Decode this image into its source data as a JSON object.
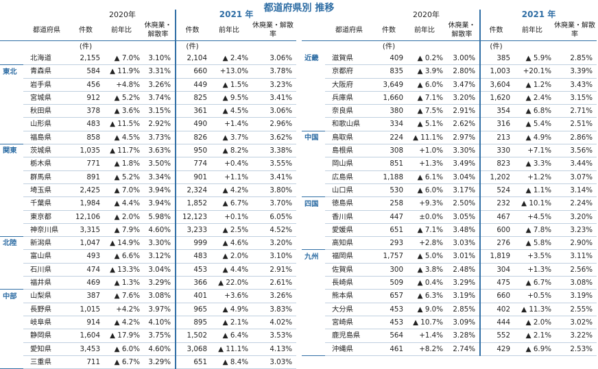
{
  "title": "都道府県別 推移",
  "year_2020": "2020年",
  "year_2021": "2021 年",
  "col_pref": "都道府県",
  "col_count": "件数",
  "col_yoy": "前年比",
  "col_rate": "休廃業・解散率",
  "unit": "(件)",
  "left": [
    {
      "region": "",
      "rows": [
        {
          "pref": "北海道",
          "c20": "2,155",
          "y20": "▲ 7.0%",
          "r20": "3.10%",
          "c21": "2,104",
          "y21": "▲ 2.4%",
          "r21": "3.06%"
        }
      ]
    },
    {
      "region": "東北",
      "rows": [
        {
          "pref": "青森県",
          "c20": "584",
          "y20": "▲ 11.9%",
          "r20": "3.31%",
          "c21": "660",
          "y21": "+13.0%",
          "r21": "3.78%"
        },
        {
          "pref": "岩手県",
          "c20": "456",
          "y20": "+4.8%",
          "r20": "3.26%",
          "c21": "449",
          "y21": "▲ 1.5%",
          "r21": "3.23%"
        },
        {
          "pref": "宮城県",
          "c20": "912",
          "y20": "▲ 5.2%",
          "r20": "3.74%",
          "c21": "825",
          "y21": "▲ 9.5%",
          "r21": "3.41%"
        },
        {
          "pref": "秋田県",
          "c20": "378",
          "y20": "▲ 3.6%",
          "r20": "3.15%",
          "c21": "361",
          "y21": "▲ 4.5%",
          "r21": "3.06%"
        },
        {
          "pref": "山形県",
          "c20": "483",
          "y20": "▲ 11.5%",
          "r20": "2.92%",
          "c21": "490",
          "y21": "+1.4%",
          "r21": "2.96%"
        },
        {
          "pref": "福島県",
          "c20": "858",
          "y20": "▲ 4.5%",
          "r20": "3.73%",
          "c21": "826",
          "y21": "▲ 3.7%",
          "r21": "3.62%"
        }
      ]
    },
    {
      "region": "関東",
      "rows": [
        {
          "pref": "茨城県",
          "c20": "1,035",
          "y20": "▲ 11.7%",
          "r20": "3.63%",
          "c21": "950",
          "y21": "▲ 8.2%",
          "r21": "3.38%"
        },
        {
          "pref": "栃木県",
          "c20": "771",
          "y20": "▲ 1.8%",
          "r20": "3.50%",
          "c21": "774",
          "y21": "+0.4%",
          "r21": "3.55%"
        },
        {
          "pref": "群馬県",
          "c20": "891",
          "y20": "▲ 5.2%",
          "r20": "3.34%",
          "c21": "901",
          "y21": "+1.1%",
          "r21": "3.41%"
        },
        {
          "pref": "埼玉県",
          "c20": "2,425",
          "y20": "▲ 7.0%",
          "r20": "3.94%",
          "c21": "2,324",
          "y21": "▲ 4.2%",
          "r21": "3.80%"
        },
        {
          "pref": "千葉県",
          "c20": "1,984",
          "y20": "▲ 4.4%",
          "r20": "3.94%",
          "c21": "1,852",
          "y21": "▲ 6.7%",
          "r21": "3.70%"
        },
        {
          "pref": "東京都",
          "c20": "12,106",
          "y20": "▲ 2.0%",
          "r20": "5.98%",
          "c21": "12,123",
          "y21": "+0.1%",
          "r21": "6.05%"
        },
        {
          "pref": "神奈川県",
          "c20": "3,315",
          "y20": "▲ 7.9%",
          "r20": "4.60%",
          "c21": "3,233",
          "y21": "▲ 2.5%",
          "r21": "4.52%"
        }
      ]
    },
    {
      "region": "北陸",
      "rows": [
        {
          "pref": "新潟県",
          "c20": "1,047",
          "y20": "▲ 14.9%",
          "r20": "3.30%",
          "c21": "999",
          "y21": "▲ 4.6%",
          "r21": "3.20%"
        },
        {
          "pref": "富山県",
          "c20": "493",
          "y20": "▲ 6.6%",
          "r20": "3.12%",
          "c21": "483",
          "y21": "▲ 2.0%",
          "r21": "3.10%"
        },
        {
          "pref": "石川県",
          "c20": "474",
          "y20": "▲ 13.3%",
          "r20": "3.04%",
          "c21": "453",
          "y21": "▲ 4.4%",
          "r21": "2.91%"
        },
        {
          "pref": "福井県",
          "c20": "469",
          "y20": "▲ 1.3%",
          "r20": "3.29%",
          "c21": "366",
          "y21": "▲ 22.0%",
          "r21": "2.61%"
        }
      ]
    },
    {
      "region": "中部",
      "rows": [
        {
          "pref": "山梨県",
          "c20": "387",
          "y20": "▲ 7.6%",
          "r20": "3.08%",
          "c21": "401",
          "y21": "+3.6%",
          "r21": "3.26%"
        },
        {
          "pref": "長野県",
          "c20": "1,015",
          "y20": "+4.2%",
          "r20": "3.97%",
          "c21": "965",
          "y21": "▲ 4.9%",
          "r21": "3.83%"
        },
        {
          "pref": "岐阜県",
          "c20": "914",
          "y20": "▲ 4.2%",
          "r20": "4.10%",
          "c21": "895",
          "y21": "▲ 2.1%",
          "r21": "4.02%"
        },
        {
          "pref": "静岡県",
          "c20": "1,604",
          "y20": "▲ 17.9%",
          "r20": "3.75%",
          "c21": "1,502",
          "y21": "▲ 6.4%",
          "r21": "3.53%"
        },
        {
          "pref": "愛知県",
          "c20": "3,453",
          "y20": "▲ 6.0%",
          "r20": "4.60%",
          "c21": "3,068",
          "y21": "▲ 11.1%",
          "r21": "4.13%"
        },
        {
          "pref": "三重県",
          "c20": "711",
          "y20": "▲ 6.7%",
          "r20": "3.29%",
          "c21": "651",
          "y21": "▲ 8.4%",
          "r21": "3.03%"
        }
      ]
    }
  ],
  "right": [
    {
      "region": "近畿",
      "rows": [
        {
          "pref": "滋賀県",
          "c20": "409",
          "y20": "▲ 0.2%",
          "r20": "3.00%",
          "c21": "385",
          "y21": "▲ 5.9%",
          "r21": "2.85%"
        },
        {
          "pref": "京都府",
          "c20": "835",
          "y20": "▲ 3.9%",
          "r20": "2.80%",
          "c21": "1,003",
          "y21": "+20.1%",
          "r21": "3.39%"
        },
        {
          "pref": "大阪府",
          "c20": "3,649",
          "y20": "▲ 6.0%",
          "r20": "3.47%",
          "c21": "3,604",
          "y21": "▲ 1.2%",
          "r21": "3.43%"
        },
        {
          "pref": "兵庫県",
          "c20": "1,660",
          "y20": "▲ 7.1%",
          "r20": "3.20%",
          "c21": "1,620",
          "y21": "▲ 2.4%",
          "r21": "3.15%"
        },
        {
          "pref": "奈良県",
          "c20": "380",
          "y20": "▲ 7.5%",
          "r20": "2.91%",
          "c21": "354",
          "y21": "▲ 6.8%",
          "r21": "2.71%"
        },
        {
          "pref": "和歌山県",
          "c20": "334",
          "y20": "▲ 5.1%",
          "r20": "2.62%",
          "c21": "316",
          "y21": "▲ 5.4%",
          "r21": "2.51%"
        }
      ]
    },
    {
      "region": "中国",
      "rows": [
        {
          "pref": "鳥取県",
          "c20": "224",
          "y20": "▲ 11.1%",
          "r20": "2.97%",
          "c21": "213",
          "y21": "▲ 4.9%",
          "r21": "2.86%"
        },
        {
          "pref": "島根県",
          "c20": "308",
          "y20": "+1.0%",
          "r20": "3.30%",
          "c21": "330",
          "y21": "+7.1%",
          "r21": "3.56%"
        },
        {
          "pref": "岡山県",
          "c20": "851",
          "y20": "+1.3%",
          "r20": "3.49%",
          "c21": "823",
          "y21": "▲ 3.3%",
          "r21": "3.44%"
        },
        {
          "pref": "広島県",
          "c20": "1,188",
          "y20": "▲ 6.1%",
          "r20": "3.04%",
          "c21": "1,202",
          "y21": "+1.2%",
          "r21": "3.07%"
        },
        {
          "pref": "山口県",
          "c20": "530",
          "y20": "▲ 6.0%",
          "r20": "3.17%",
          "c21": "524",
          "y21": "▲ 1.1%",
          "r21": "3.14%"
        }
      ]
    },
    {
      "region": "四国",
      "rows": [
        {
          "pref": "徳島県",
          "c20": "258",
          "y20": "+9.3%",
          "r20": "2.50%",
          "c21": "232",
          "y21": "▲ 10.1%",
          "r21": "2.24%"
        },
        {
          "pref": "香川県",
          "c20": "447",
          "y20": "±0.0%",
          "r20": "3.05%",
          "c21": "467",
          "y21": "+4.5%",
          "r21": "3.20%"
        },
        {
          "pref": "愛媛県",
          "c20": "651",
          "y20": "▲ 7.1%",
          "r20": "3.48%",
          "c21": "600",
          "y21": "▲ 7.8%",
          "r21": "3.23%"
        },
        {
          "pref": "高知県",
          "c20": "293",
          "y20": "+2.8%",
          "r20": "3.03%",
          "c21": "276",
          "y21": "▲ 5.8%",
          "r21": "2.90%"
        }
      ]
    },
    {
      "region": "九州",
      "rows": [
        {
          "pref": "福岡県",
          "c20": "1,757",
          "y20": "▲ 5.0%",
          "r20": "3.01%",
          "c21": "1,819",
          "y21": "+3.5%",
          "r21": "3.11%"
        },
        {
          "pref": "佐賀県",
          "c20": "300",
          "y20": "▲ 3.8%",
          "r20": "2.48%",
          "c21": "304",
          "y21": "+1.3%",
          "r21": "2.56%"
        },
        {
          "pref": "長崎県",
          "c20": "509",
          "y20": "▲ 0.4%",
          "r20": "3.29%",
          "c21": "475",
          "y21": "▲ 6.7%",
          "r21": "3.08%"
        },
        {
          "pref": "熊本県",
          "c20": "657",
          "y20": "▲ 6.3%",
          "r20": "3.19%",
          "c21": "660",
          "y21": "+0.5%",
          "r21": "3.19%"
        },
        {
          "pref": "大分県",
          "c20": "453",
          "y20": "▲ 9.0%",
          "r20": "2.85%",
          "c21": "402",
          "y21": "▲ 11.3%",
          "r21": "2.55%"
        },
        {
          "pref": "宮崎県",
          "c20": "453",
          "y20": "▲ 10.7%",
          "r20": "3.09%",
          "c21": "444",
          "y21": "▲ 2.0%",
          "r21": "3.02%"
        },
        {
          "pref": "鹿児島県",
          "c20": "564",
          "y20": "+1.4%",
          "r20": "3.28%",
          "c21": "552",
          "y21": "▲ 2.1%",
          "r21": "3.22%"
        },
        {
          "pref": "沖縄県",
          "c20": "461",
          "y20": "+8.2%",
          "r20": "2.74%",
          "c21": "429",
          "y21": "▲ 6.9%",
          "r21": "2.53%"
        }
      ]
    }
  ]
}
